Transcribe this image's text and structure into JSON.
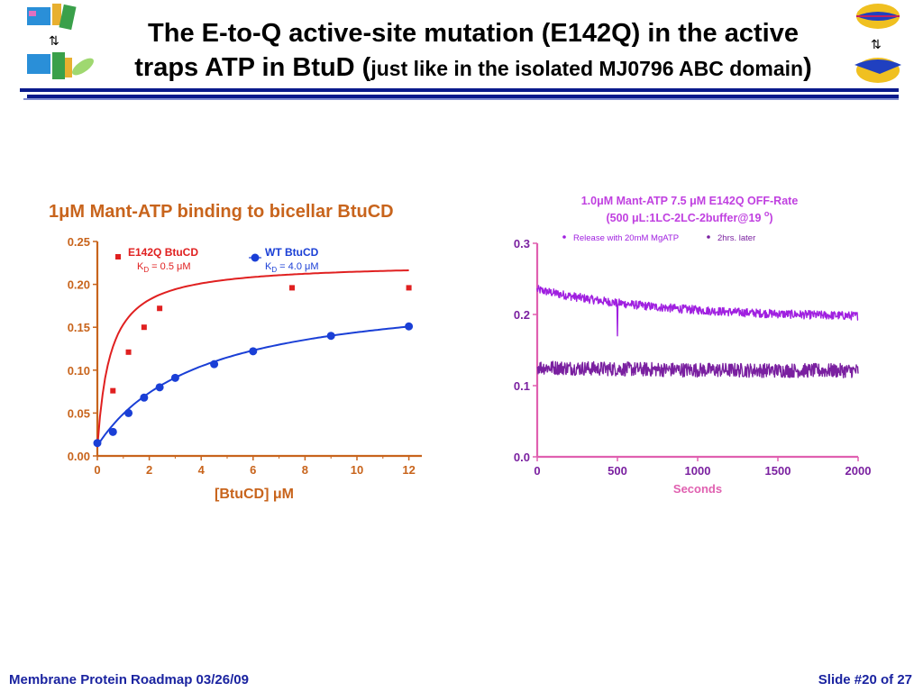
{
  "slide": {
    "title_line1": "The E-to-Q active-site mutation (E142Q) in the active",
    "title_line2_main": "traps ATP in BtuD (",
    "title_line2_small": "just like in the isolated MJ0796 ABC domain",
    "title_line2_close": ")",
    "footer_left": "Membrane Protein Roadmap 03/26/09",
    "footer_right": "Slide #20 of 27"
  },
  "colors": {
    "rule": "#0a1a8c",
    "footer": "#1a23a0",
    "left_title": "#c8641c",
    "e142q": "#e02020",
    "wt": "#1a3fd6",
    "right_axis": "#e060b0",
    "right_title": "#c040e0",
    "release": "#a020e0",
    "later": "#7a20a0"
  },
  "chart_data": [
    {
      "type": "scatter",
      "title_pre": "1",
      "title_mu": "μ",
      "title_post": "M Mant-ATP binding to bicellar BtuCD",
      "xlabel_pre": "[BtuCD] ",
      "xlabel_mu": "μ",
      "xlabel_post": "M",
      "xlim": [
        0,
        12.5
      ],
      "ylim": [
        0,
        0.25
      ],
      "xticks": [
        0,
        2,
        4,
        6,
        8,
        10,
        12
      ],
      "yticks": [
        "0.00",
        "0.05",
        "0.10",
        "0.15",
        "0.20",
        "0.25"
      ],
      "series": [
        {
          "name": "E142Q BtuCD",
          "kd_label_pre": "K",
          "kd_label_sub": "D",
          "kd_label_post": " = 0.5 μM",
          "marker": "square",
          "x": [
            0,
            0.6,
            1.2,
            1.8,
            2.4,
            7.5,
            12
          ],
          "y": [
            0.015,
            0.076,
            0.121,
            0.15,
            0.172,
            0.196,
            0.196
          ],
          "fit": {
            "bmax": 0.215,
            "kd": 0.5,
            "y0": 0.01
          }
        },
        {
          "name": "WT BtuCD",
          "kd_label_pre": "K",
          "kd_label_sub": "D",
          "kd_label_post": " = 4.0 μM",
          "marker": "circle",
          "x": [
            0,
            0.6,
            1.2,
            1.8,
            2.4,
            3.0,
            4.5,
            6.0,
            9.0,
            12
          ],
          "y": [
            0.015,
            0.028,
            0.05,
            0.068,
            0.08,
            0.091,
            0.107,
            0.122,
            0.14,
            0.151
          ],
          "fit": {
            "bmax": 0.185,
            "kd": 4.0,
            "y0": 0.012
          }
        }
      ]
    },
    {
      "type": "line",
      "title_line1": "1.0μM Mant-ATP 7.5 μM E142Q OFF-Rate",
      "title_line2_main": "(500 μL:1LC-2LC-2buffer@19 ",
      "title_line2_sup": "o",
      "title_line2_close": ")",
      "xlabel": "Seconds",
      "xlim": [
        0,
        2000
      ],
      "ylim": [
        0,
        0.3
      ],
      "xticks": [
        0,
        500,
        1000,
        1500,
        2000
      ],
      "yticks": [
        "0.0",
        "0.1",
        "0.2",
        "0.3"
      ],
      "legend": "top",
      "series": [
        {
          "name": "Release with 20mM MgATP",
          "start": 0.235,
          "end": 0.198,
          "noise": 0.006
        },
        {
          "name": "2hrs. later",
          "start": 0.126,
          "end": 0.121,
          "noise": 0.01
        }
      ]
    }
  ]
}
